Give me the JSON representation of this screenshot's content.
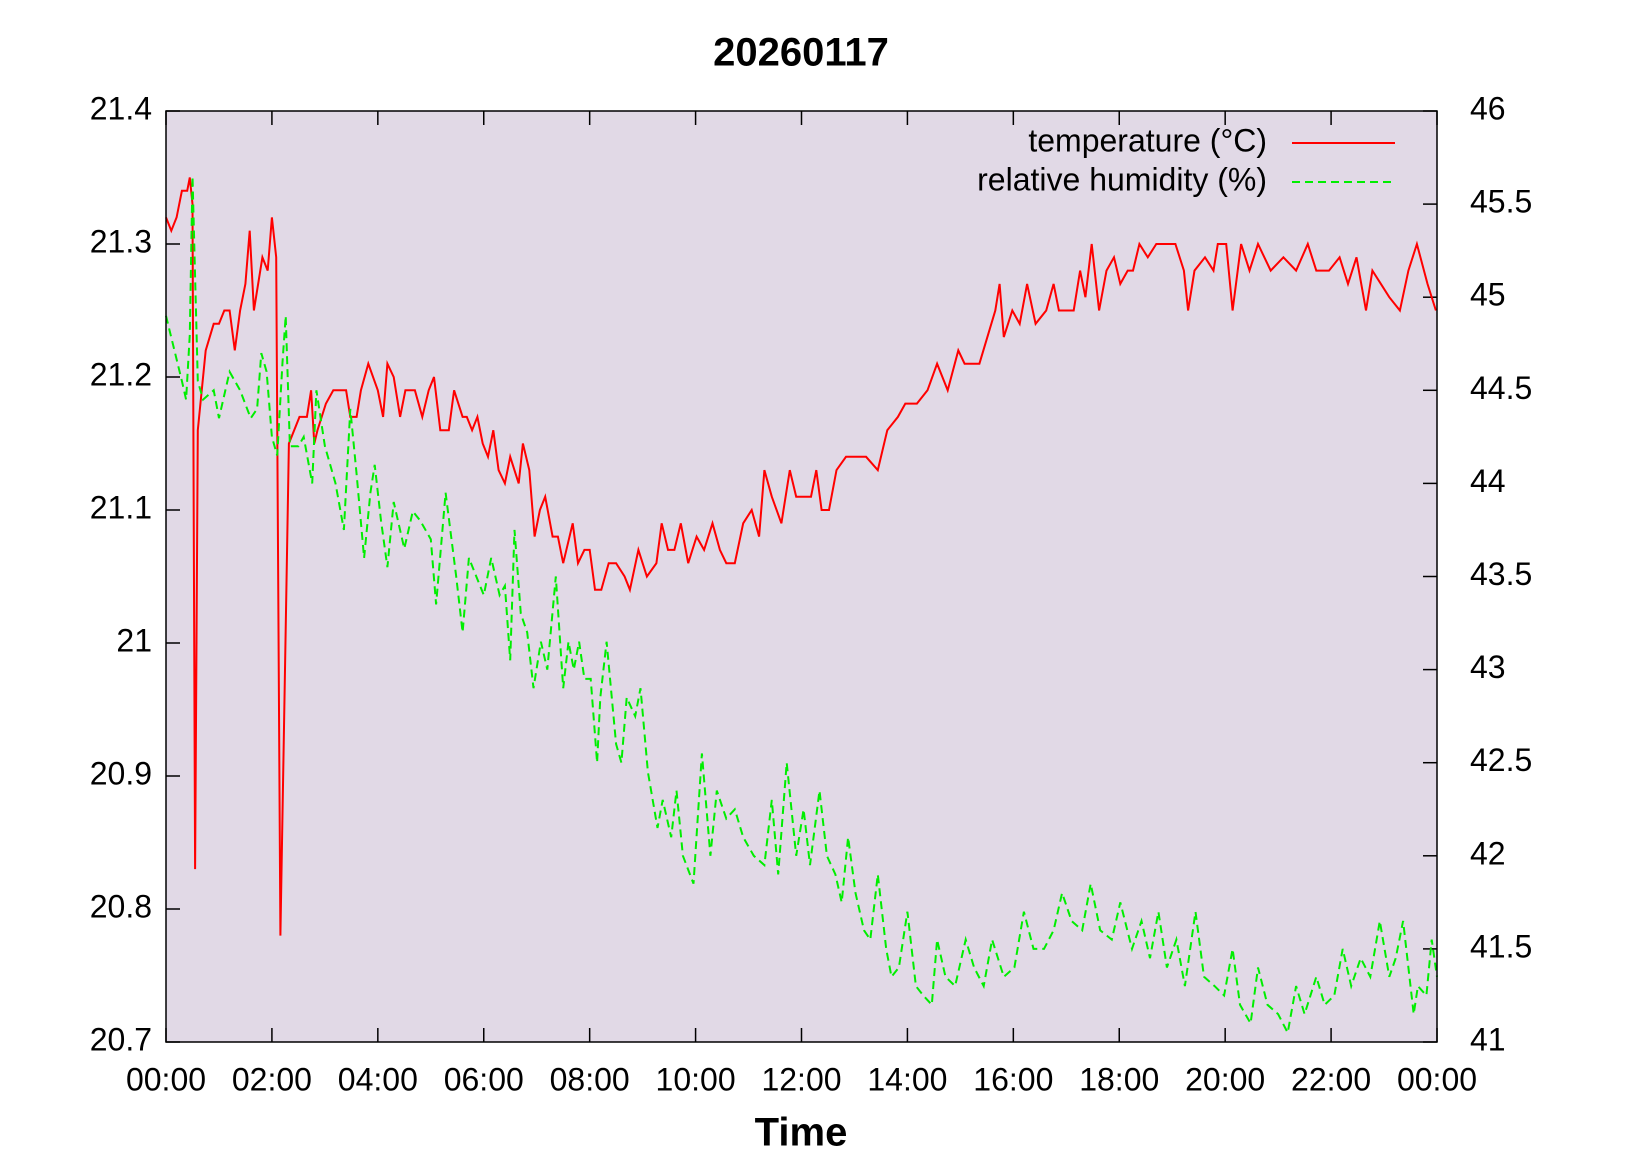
{
  "chart_data": {
    "type": "line",
    "title": "20260117",
    "xlabel": "Time",
    "background": "#e1d9e6",
    "legend": "top-right",
    "xlim": [
      0,
      24
    ],
    "xticks": [
      {
        "value": 0,
        "label": "00:00"
      },
      {
        "value": 2,
        "label": "02:00"
      },
      {
        "value": 4,
        "label": "04:00"
      },
      {
        "value": 6,
        "label": "06:00"
      },
      {
        "value": 8,
        "label": "08:00"
      },
      {
        "value": 10,
        "label": "10:00"
      },
      {
        "value": 12,
        "label": "12:00"
      },
      {
        "value": 14,
        "label": "14:00"
      },
      {
        "value": 16,
        "label": "16:00"
      },
      {
        "value": 18,
        "label": "18:00"
      },
      {
        "value": 20,
        "label": "20:00"
      },
      {
        "value": 22,
        "label": "22:00"
      },
      {
        "value": 24,
        "label": "00:00"
      }
    ],
    "ylim": [
      20.7,
      21.4
    ],
    "yticks": [
      20.7,
      20.8,
      20.9,
      21,
      21.1,
      21.2,
      21.3,
      21.4
    ],
    "y2lim": [
      41,
      46
    ],
    "y2ticks": [
      41,
      41.5,
      42,
      42.5,
      43,
      43.5,
      44,
      44.5,
      45,
      45.5,
      46
    ],
    "series": [
      {
        "name": "temperature (°C)",
        "color": "#ff0000",
        "dash": "none",
        "x": [
          0,
          0.1,
          0.2,
          0.3,
          0.4,
          0.45,
          0.5,
          0.55,
          0.6,
          0.75,
          0.9,
          1.0,
          1.1,
          1.2,
          1.3,
          1.4,
          1.5,
          1.58,
          1.66,
          1.82,
          1.92,
          2.0,
          2.08,
          2.16,
          2.32,
          2.52,
          2.66,
          2.74,
          2.8,
          2.86,
          3.02,
          3.16,
          3.4,
          3.48,
          3.6,
          3.68,
          3.82,
          4.0,
          4.1,
          4.18,
          4.3,
          4.42,
          4.52,
          4.7,
          4.84,
          4.96,
          5.06,
          5.18,
          5.34,
          5.44,
          5.6,
          5.68,
          5.78,
          5.88,
          5.98,
          6.08,
          6.18,
          6.28,
          6.4,
          6.5,
          6.66,
          6.74,
          6.86,
          6.96,
          7.06,
          7.16,
          7.3,
          7.4,
          7.5,
          7.68,
          7.78,
          7.9,
          8.0,
          8.1,
          8.22,
          8.36,
          8.5,
          8.66,
          8.76,
          8.92,
          9.08,
          9.26,
          9.36,
          9.48,
          9.6,
          9.72,
          9.86,
          10.02,
          10.16,
          10.32,
          10.46,
          10.58,
          10.74,
          10.9,
          11.06,
          11.2,
          11.3,
          11.44,
          11.62,
          11.78,
          11.9,
          12.18,
          12.28,
          12.38,
          12.52,
          12.66,
          12.84,
          12.98,
          13.22,
          13.44,
          13.62,
          13.82,
          13.96,
          14.18,
          14.38,
          14.56,
          14.76,
          14.96,
          15.08,
          15.36,
          15.66,
          15.74,
          15.82,
          15.98,
          16.12,
          16.26,
          16.42,
          16.62,
          16.76,
          16.86,
          17.14,
          17.26,
          17.36,
          17.48,
          17.62,
          17.76,
          17.9,
          18.02,
          18.16,
          18.26,
          18.38,
          18.54,
          18.7,
          18.86,
          19.06,
          19.22,
          19.3,
          19.42,
          19.62,
          19.78,
          19.86,
          20.02,
          20.14,
          20.3,
          20.46,
          20.62,
          20.86,
          21.1,
          21.34,
          21.56,
          21.72,
          21.96,
          22.16,
          22.32,
          22.48,
          22.66,
          22.78,
          22.94,
          23.1,
          23.3,
          23.46,
          23.62,
          23.82,
          23.98
        ],
        "values": [
          21.32,
          21.31,
          21.32,
          21.34,
          21.34,
          21.35,
          21.33,
          20.83,
          21.16,
          21.22,
          21.24,
          21.24,
          21.25,
          21.25,
          21.22,
          21.25,
          21.27,
          21.31,
          21.25,
          21.29,
          21.28,
          21.32,
          21.29,
          20.78,
          21.15,
          21.17,
          21.17,
          21.19,
          21.15,
          21.16,
          21.18,
          21.19,
          21.19,
          21.17,
          21.17,
          21.19,
          21.21,
          21.19,
          21.17,
          21.21,
          21.2,
          21.17,
          21.19,
          21.19,
          21.17,
          21.19,
          21.2,
          21.16,
          21.16,
          21.19,
          21.17,
          21.17,
          21.16,
          21.17,
          21.15,
          21.14,
          21.16,
          21.13,
          21.12,
          21.14,
          21.12,
          21.15,
          21.13,
          21.08,
          21.1,
          21.11,
          21.08,
          21.08,
          21.06,
          21.09,
          21.06,
          21.07,
          21.07,
          21.04,
          21.04,
          21.06,
          21.06,
          21.05,
          21.04,
          21.07,
          21.05,
          21.06,
          21.09,
          21.07,
          21.07,
          21.09,
          21.06,
          21.08,
          21.07,
          21.09,
          21.07,
          21.06,
          21.06,
          21.09,
          21.1,
          21.08,
          21.13,
          21.11,
          21.09,
          21.13,
          21.11,
          21.11,
          21.13,
          21.1,
          21.1,
          21.13,
          21.14,
          21.14,
          21.14,
          21.13,
          21.16,
          21.17,
          21.18,
          21.18,
          21.19,
          21.21,
          21.19,
          21.22,
          21.21,
          21.21,
          21.25,
          21.27,
          21.23,
          21.25,
          21.24,
          21.27,
          21.24,
          21.25,
          21.27,
          21.25,
          21.25,
          21.28,
          21.26,
          21.3,
          21.25,
          21.28,
          21.29,
          21.27,
          21.28,
          21.28,
          21.3,
          21.29,
          21.3,
          21.3,
          21.3,
          21.28,
          21.25,
          21.28,
          21.29,
          21.28,
          21.3,
          21.3,
          21.25,
          21.3,
          21.28,
          21.3,
          21.28,
          21.29,
          21.28,
          21.3,
          21.28,
          21.28,
          21.29,
          21.27,
          21.29,
          21.25,
          21.28,
          21.27,
          21.26,
          21.25,
          21.28,
          21.3,
          21.27,
          21.25
        ]
      },
      {
        "name": "relative humidity (%)",
        "color": "#00ee00",
        "dash": "8,5",
        "axis": "y2",
        "x": [
          0,
          0.3,
          0.38,
          0.45,
          0.5,
          0.6,
          0.7,
          0.9,
          1.0,
          1.2,
          1.4,
          1.6,
          1.72,
          1.8,
          1.9,
          2.0,
          2.1,
          2.2,
          2.26,
          2.34,
          2.5,
          2.6,
          2.76,
          2.84,
          3.0,
          3.2,
          3.36,
          3.48,
          3.6,
          3.74,
          3.86,
          3.94,
          4.06,
          4.18,
          4.3,
          4.5,
          4.66,
          4.8,
          5.0,
          5.1,
          5.28,
          5.48,
          5.6,
          5.72,
          5.86,
          6.0,
          6.14,
          6.3,
          6.4,
          6.5,
          6.58,
          6.7,
          6.82,
          6.94,
          7.08,
          7.2,
          7.36,
          7.5,
          7.6,
          7.7,
          7.8,
          7.9,
          8.02,
          8.14,
          8.2,
          8.32,
          8.5,
          8.6,
          8.7,
          8.86,
          8.96,
          9.1,
          9.28,
          9.38,
          9.54,
          9.64,
          9.76,
          9.96,
          10.12,
          10.28,
          10.4,
          10.58,
          10.74,
          10.9,
          11.1,
          11.3,
          11.44,
          11.56,
          11.72,
          11.9,
          12.04,
          12.16,
          12.34,
          12.48,
          12.64,
          12.76,
          12.88,
          13.02,
          13.18,
          13.3,
          13.44,
          13.6,
          13.7,
          13.84,
          14.0,
          14.16,
          14.3,
          14.46,
          14.56,
          14.72,
          14.9,
          15.1,
          15.26,
          15.44,
          15.6,
          15.82,
          16.02,
          16.2,
          16.38,
          16.58,
          16.76,
          16.92,
          17.1,
          17.3,
          17.46,
          17.64,
          17.86,
          18.02,
          18.24,
          18.42,
          18.58,
          18.74,
          18.9,
          19.08,
          19.24,
          19.44,
          19.6,
          19.8,
          19.98,
          20.14,
          20.28,
          20.48,
          20.62,
          20.8,
          21.0,
          21.18,
          21.34,
          21.5,
          21.72,
          21.88,
          22.06,
          22.22,
          22.38,
          22.56,
          22.74,
          22.92,
          23.1,
          23.22,
          23.36,
          23.56,
          23.64,
          23.8,
          23.9,
          24.0
        ],
        "values": [
          44.9,
          44.55,
          44.45,
          44.8,
          45.65,
          44.55,
          44.45,
          44.5,
          44.35,
          44.6,
          44.5,
          44.35,
          44.4,
          44.7,
          44.6,
          44.25,
          44.15,
          44.65,
          44.9,
          44.2,
          44.2,
          44.25,
          44.0,
          44.5,
          44.2,
          44.0,
          43.75,
          44.4,
          44.05,
          43.6,
          43.95,
          44.1,
          43.8,
          43.55,
          43.9,
          43.65,
          43.85,
          43.8,
          43.7,
          43.35,
          43.95,
          43.5,
          43.2,
          43.6,
          43.5,
          43.4,
          43.6,
          43.4,
          43.45,
          43.05,
          43.75,
          43.3,
          43.2,
          42.9,
          43.15,
          43.0,
          43.5,
          42.9,
          43.15,
          43.0,
          43.15,
          42.95,
          42.95,
          42.5,
          42.85,
          43.15,
          42.6,
          42.5,
          42.85,
          42.75,
          42.9,
          42.45,
          42.15,
          42.3,
          42.1,
          42.35,
          42.0,
          41.85,
          42.55,
          42.0,
          42.35,
          42.2,
          42.25,
          42.1,
          42.0,
          41.95,
          42.3,
          41.9,
          42.5,
          42.0,
          42.25,
          41.95,
          42.35,
          42.0,
          41.9,
          41.75,
          42.1,
          41.8,
          41.6,
          41.55,
          41.9,
          41.5,
          41.35,
          41.4,
          41.7,
          41.3,
          41.25,
          41.2,
          41.55,
          41.35,
          41.3,
          41.55,
          41.4,
          41.3,
          41.55,
          41.35,
          41.4,
          41.7,
          41.5,
          41.5,
          41.6,
          41.8,
          41.65,
          41.6,
          41.85,
          41.6,
          41.55,
          41.75,
          41.5,
          41.65,
          41.45,
          41.7,
          41.4,
          41.55,
          41.3,
          41.7,
          41.35,
          41.3,
          41.25,
          41.5,
          41.2,
          41.1,
          41.4,
          41.2,
          41.15,
          41.05,
          41.3,
          41.15,
          41.35,
          41.2,
          41.25,
          41.5,
          41.3,
          41.45,
          41.35,
          41.65,
          41.35,
          41.45,
          41.65,
          41.15,
          41.3,
          41.25,
          41.55,
          41.35
        ]
      }
    ]
  }
}
